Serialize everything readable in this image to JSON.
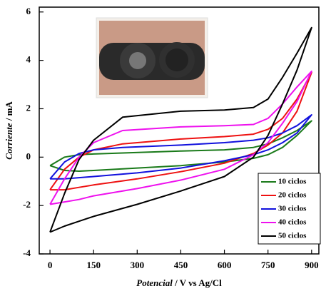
{
  "chart_data": {
    "type": "line",
    "x_label": "Potencial / V vs Ag/Cl",
    "y_label": "Corriente / mA",
    "x": [
      0,
      50,
      100,
      150,
      250,
      450,
      600,
      700,
      750,
      800,
      850,
      900,
      850,
      800,
      750,
      700,
      600,
      450,
      300,
      150,
      100,
      50,
      0
    ],
    "series": [
      {
        "name": "10 ciclos",
        "color": "#1a7a1a",
        "values": [
          -0.35,
          0.0,
          0.1,
          0.13,
          0.17,
          0.25,
          0.3,
          0.4,
          0.55,
          0.8,
          1.1,
          1.5,
          0.9,
          0.4,
          0.1,
          -0.05,
          -0.2,
          -0.35,
          -0.45,
          -0.55,
          -0.58,
          -0.55,
          -0.35
        ]
      },
      {
        "name": "20 ciclos",
        "color": "#ee1111",
        "values": [
          -1.35,
          -0.5,
          0.0,
          0.3,
          0.55,
          0.75,
          0.85,
          0.95,
          1.15,
          1.6,
          2.4,
          3.5,
          1.9,
          1.0,
          0.5,
          0.15,
          -0.25,
          -0.6,
          -0.9,
          -1.15,
          -1.25,
          -1.35,
          -1.35
        ]
      },
      {
        "name": "30 ciclos",
        "color": "#1111dd",
        "values": [
          -0.9,
          -0.2,
          0.15,
          0.3,
          0.4,
          0.5,
          0.6,
          0.7,
          0.8,
          1.0,
          1.3,
          1.75,
          1.0,
          0.6,
          0.3,
          0.1,
          -0.15,
          -0.45,
          -0.65,
          -0.8,
          -0.85,
          -0.9,
          -0.9
        ]
      },
      {
        "name": "40 ciclos",
        "color": "#ee11ee",
        "values": [
          -1.95,
          -0.9,
          0.0,
          0.6,
          1.1,
          1.25,
          1.3,
          1.35,
          1.6,
          2.2,
          2.9,
          3.55,
          2.3,
          1.4,
          0.6,
          0.1,
          -0.5,
          -0.95,
          -1.3,
          -1.6,
          -1.75,
          -1.85,
          -1.95
        ]
      },
      {
        "name": "50 ciclos",
        "color": "#000000",
        "values": [
          -3.1,
          -1.5,
          -0.1,
          0.7,
          1.65,
          1.9,
          1.95,
          2.05,
          2.4,
          3.3,
          4.3,
          5.35,
          3.6,
          2.2,
          0.9,
          0.0,
          -0.8,
          -1.4,
          -1.95,
          -2.45,
          -2.65,
          -2.85,
          -3.1
        ]
      }
    ],
    "xlim": [
      -37,
      925
    ],
    "ylim": [
      -4,
      6.2
    ],
    "xticks": [
      0,
      150,
      300,
      450,
      600,
      750,
      900
    ],
    "yticks": [
      -4,
      -2,
      0,
      2,
      4,
      6
    ],
    "legend": "lower-right"
  }
}
